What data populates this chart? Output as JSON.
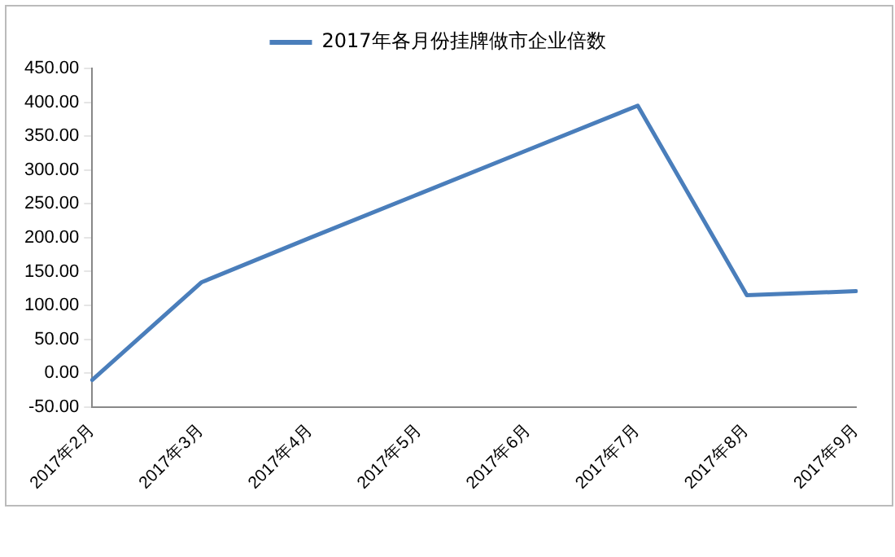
{
  "chart_data": {
    "type": "line",
    "categories": [
      "2017年2月",
      "2017年3月",
      "2017年4月",
      "2017年5月",
      "2017年6月",
      "2017年7月",
      "2017年8月",
      "2017年9月"
    ],
    "series": [
      {
        "name": "2017年各月份挂牌做市企业倍数",
        "color": "#4a7ebb",
        "values": [
          -10,
          134,
          200,
          265,
          330,
          395,
          115,
          121
        ]
      }
    ],
    "ylim": [
      -50,
      450
    ],
    "yticks": [
      {
        "value": -50,
        "label": "-50.00"
      },
      {
        "value": 0,
        "label": "0.00"
      },
      {
        "value": 50,
        "label": "50.00"
      },
      {
        "value": 100,
        "label": "100.00"
      },
      {
        "value": 150,
        "label": "150.00"
      },
      {
        "value": 200,
        "label": "200.00"
      },
      {
        "value": 250,
        "label": "250.00"
      },
      {
        "value": 300,
        "label": "300.00"
      },
      {
        "value": 350,
        "label": "350.00"
      },
      {
        "value": 400,
        "label": "400.00"
      },
      {
        "value": 450,
        "label": "450.00"
      }
    ],
    "grid": false,
    "legend": "top",
    "marker": "none",
    "line_style": "solid"
  }
}
